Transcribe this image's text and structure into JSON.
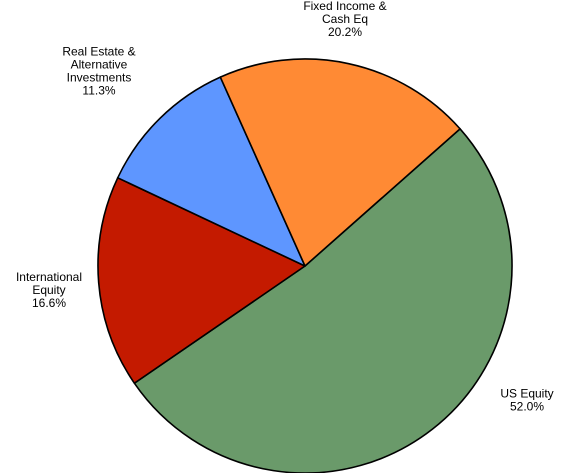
{
  "chart_data": {
    "type": "pie",
    "title": "",
    "slices": [
      {
        "label_lines": [
          "US Equity"
        ],
        "value": 52.0,
        "value_text": "52.0%",
        "color": "#6a9a6a"
      },
      {
        "label_lines": [
          "International",
          "Equity"
        ],
        "value": 16.6,
        "value_text": "16.6%",
        "color": "#c41a00"
      },
      {
        "label_lines": [
          "Real Estate &",
          "Alternative",
          "Investments"
        ],
        "value": 11.3,
        "value_text": "11.3%",
        "color": "#5e96ff"
      },
      {
        "label_lines": [
          "Fixed Income &",
          "Cash Eq"
        ],
        "value": 20.2,
        "value_text": "20.2%",
        "color": "#ff8a34"
      }
    ],
    "outline_color": "#000000"
  }
}
